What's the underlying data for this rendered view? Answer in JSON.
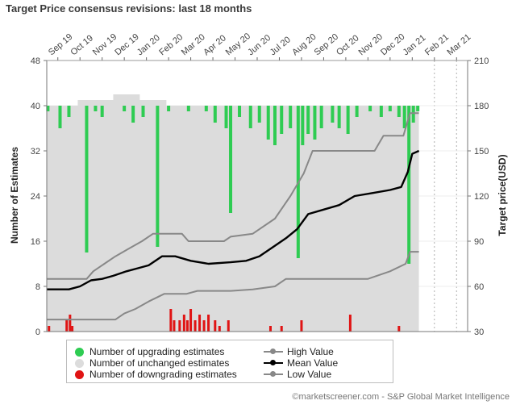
{
  "chart_data": {
    "type": "bar",
    "title": "Target Price consensus revisions: last 18 months",
    "ylabel": "Number of Estimates",
    "y2label": "Target price(USD)",
    "ylim": [
      0,
      48
    ],
    "y2lim": [
      30,
      210
    ],
    "yticks": [
      0,
      8,
      16,
      24,
      32,
      40,
      48
    ],
    "y2ticks": [
      30,
      60,
      90,
      120,
      150,
      180,
      210
    ],
    "month_labels": [
      "Sep 19",
      "Oct 19",
      "Nov 19",
      "Dec 19",
      "Jan 20",
      "Feb 20",
      "Mar 20",
      "Apr 20",
      "May 20",
      "Jun 20",
      "Jul 20",
      "Aug 20",
      "Sep 20",
      "Oct 20",
      "Nov 20",
      "Dec 20",
      "Jan 21",
      "Feb 21",
      "Mar 21"
    ],
    "x_domain": [
      0,
      19
    ],
    "data_end": 16.8,
    "unchanged_estimates": [
      {
        "x": 0.0,
        "y": 40
      },
      {
        "x": 1.2,
        "y": 40
      },
      {
        "x": 1.4,
        "y": 41
      },
      {
        "x": 2.8,
        "y": 41
      },
      {
        "x": 3.0,
        "y": 42
      },
      {
        "x": 4.0,
        "y": 42
      },
      {
        "x": 4.2,
        "y": 41
      },
      {
        "x": 5.2,
        "y": 41
      },
      {
        "x": 5.4,
        "y": 40
      },
      {
        "x": 16.8,
        "y": 40
      }
    ],
    "upgrading_estimates": [
      {
        "x": 0.05,
        "y": 39
      },
      {
        "x": 0.6,
        "y": 36
      },
      {
        "x": 1.0,
        "y": 38
      },
      {
        "x": 1.5,
        "y": 40
      },
      {
        "x": 1.8,
        "y": 14
      },
      {
        "x": 2.2,
        "y": 39
      },
      {
        "x": 2.5,
        "y": 38
      },
      {
        "x": 3.1,
        "y": 40
      },
      {
        "x": 3.5,
        "y": 39
      },
      {
        "x": 3.9,
        "y": 37
      },
      {
        "x": 4.35,
        "y": 38
      },
      {
        "x": 5.0,
        "y": 15
      },
      {
        "x": 5.5,
        "y": 39
      },
      {
        "x": 6.4,
        "y": 39
      },
      {
        "x": 7.2,
        "y": 39
      },
      {
        "x": 7.6,
        "y": 37
      },
      {
        "x": 8.1,
        "y": 36
      },
      {
        "x": 8.3,
        "y": 21
      },
      {
        "x": 8.7,
        "y": 38
      },
      {
        "x": 9.2,
        "y": 36
      },
      {
        "x": 9.6,
        "y": 37
      },
      {
        "x": 10.0,
        "y": 34
      },
      {
        "x": 10.3,
        "y": 33
      },
      {
        "x": 10.6,
        "y": 35
      },
      {
        "x": 11.0,
        "y": 36
      },
      {
        "x": 11.35,
        "y": 13
      },
      {
        "x": 11.55,
        "y": 33
      },
      {
        "x": 11.8,
        "y": 35
      },
      {
        "x": 12.1,
        "y": 34
      },
      {
        "x": 12.4,
        "y": 36
      },
      {
        "x": 12.9,
        "y": 37
      },
      {
        "x": 13.2,
        "y": 36
      },
      {
        "x": 13.6,
        "y": 35
      },
      {
        "x": 14.0,
        "y": 38
      },
      {
        "x": 14.6,
        "y": 39
      },
      {
        "x": 15.1,
        "y": 38
      },
      {
        "x": 15.5,
        "y": 39
      },
      {
        "x": 15.9,
        "y": 38
      },
      {
        "x": 16.15,
        "y": 36
      },
      {
        "x": 16.35,
        "y": 12
      },
      {
        "x": 16.55,
        "y": 37
      },
      {
        "x": 16.75,
        "y": 39
      }
    ],
    "downgrading_estimates": [
      {
        "x": 0.1,
        "y": 1
      },
      {
        "x": 0.9,
        "y": 2
      },
      {
        "x": 1.05,
        "y": 3
      },
      {
        "x": 1.15,
        "y": 1
      },
      {
        "x": 5.6,
        "y": 4
      },
      {
        "x": 5.75,
        "y": 2
      },
      {
        "x": 6.0,
        "y": 2
      },
      {
        "x": 6.2,
        "y": 3
      },
      {
        "x": 6.35,
        "y": 2
      },
      {
        "x": 6.5,
        "y": 4
      },
      {
        "x": 6.7,
        "y": 2
      },
      {
        "x": 6.9,
        "y": 3
      },
      {
        "x": 7.1,
        "y": 2
      },
      {
        "x": 7.3,
        "y": 3
      },
      {
        "x": 7.6,
        "y": 2
      },
      {
        "x": 7.8,
        "y": 1
      },
      {
        "x": 8.2,
        "y": 2
      },
      {
        "x": 10.1,
        "y": 1
      },
      {
        "x": 10.6,
        "y": 1
      },
      {
        "x": 11.5,
        "y": 2
      },
      {
        "x": 13.7,
        "y": 3
      },
      {
        "x": 15.9,
        "y": 1
      }
    ],
    "high_value": [
      {
        "x": 0.0,
        "y": 65
      },
      {
        "x": 1.8,
        "y": 65
      },
      {
        "x": 2.1,
        "y": 70
      },
      {
        "x": 2.6,
        "y": 75
      },
      {
        "x": 3.1,
        "y": 80
      },
      {
        "x": 3.7,
        "y": 85
      },
      {
        "x": 4.3,
        "y": 90
      },
      {
        "x": 4.8,
        "y": 95
      },
      {
        "x": 6.1,
        "y": 95
      },
      {
        "x": 6.4,
        "y": 90
      },
      {
        "x": 8.0,
        "y": 90
      },
      {
        "x": 8.3,
        "y": 93
      },
      {
        "x": 9.3,
        "y": 95
      },
      {
        "x": 10.3,
        "y": 105
      },
      {
        "x": 11.0,
        "y": 120
      },
      {
        "x": 11.6,
        "y": 135
      },
      {
        "x": 12.0,
        "y": 150
      },
      {
        "x": 14.8,
        "y": 150
      },
      {
        "x": 15.2,
        "y": 160
      },
      {
        "x": 16.1,
        "y": 160
      },
      {
        "x": 16.4,
        "y": 175
      },
      {
        "x": 16.8,
        "y": 175
      }
    ],
    "mean_value": [
      {
        "x": 0.0,
        "y": 58
      },
      {
        "x": 1.0,
        "y": 58
      },
      {
        "x": 1.5,
        "y": 60
      },
      {
        "x": 2.0,
        "y": 64
      },
      {
        "x": 2.5,
        "y": 65
      },
      {
        "x": 3.0,
        "y": 67
      },
      {
        "x": 3.6,
        "y": 70
      },
      {
        "x": 4.1,
        "y": 72
      },
      {
        "x": 4.6,
        "y": 74
      },
      {
        "x": 5.2,
        "y": 80
      },
      {
        "x": 5.8,
        "y": 80
      },
      {
        "x": 6.5,
        "y": 77
      },
      {
        "x": 7.3,
        "y": 75
      },
      {
        "x": 8.3,
        "y": 76
      },
      {
        "x": 9.0,
        "y": 77
      },
      {
        "x": 9.6,
        "y": 80
      },
      {
        "x": 10.3,
        "y": 87
      },
      {
        "x": 10.8,
        "y": 92
      },
      {
        "x": 11.3,
        "y": 98
      },
      {
        "x": 11.8,
        "y": 108
      },
      {
        "x": 12.5,
        "y": 111
      },
      {
        "x": 13.2,
        "y": 114
      },
      {
        "x": 13.9,
        "y": 120
      },
      {
        "x": 14.7,
        "y": 122
      },
      {
        "x": 15.5,
        "y": 124
      },
      {
        "x": 16.0,
        "y": 126
      },
      {
        "x": 16.3,
        "y": 136
      },
      {
        "x": 16.5,
        "y": 148
      },
      {
        "x": 16.8,
        "y": 150
      }
    ],
    "low_value": [
      {
        "x": 0.0,
        "y": 38
      },
      {
        "x": 3.1,
        "y": 38
      },
      {
        "x": 3.5,
        "y": 42
      },
      {
        "x": 4.0,
        "y": 45
      },
      {
        "x": 4.6,
        "y": 50
      },
      {
        "x": 5.3,
        "y": 55
      },
      {
        "x": 6.3,
        "y": 55
      },
      {
        "x": 6.8,
        "y": 57
      },
      {
        "x": 8.3,
        "y": 57
      },
      {
        "x": 9.3,
        "y": 58
      },
      {
        "x": 10.3,
        "y": 60
      },
      {
        "x": 10.8,
        "y": 65
      },
      {
        "x": 14.5,
        "y": 65
      },
      {
        "x": 15.5,
        "y": 70
      },
      {
        "x": 16.2,
        "y": 75
      },
      {
        "x": 16.4,
        "y": 83
      },
      {
        "x": 16.8,
        "y": 83
      }
    ],
    "colors": {
      "upgrading": "#2ecc52",
      "unchanged": "#dcdcdc",
      "downgrading": "#e01414",
      "high": "#888888",
      "mean": "#000000",
      "low": "#888888"
    }
  },
  "legend": {
    "upgrading": "Number of upgrading estimates",
    "unchanged": "Number of unchanged estimates",
    "downgrading": "Number of downgrading estimates",
    "high": "High Value",
    "mean": "Mean Value",
    "low": "Low Value"
  },
  "source": "©marketscreener.com - S&P Global Market Intelligence"
}
